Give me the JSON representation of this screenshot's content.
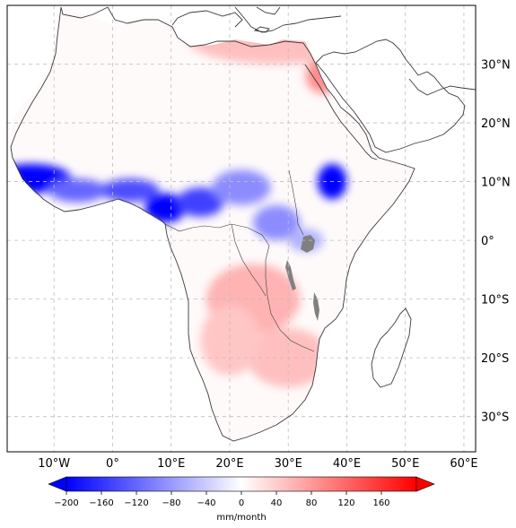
{
  "map": {
    "lon_ticks": [
      "10°W",
      "0°",
      "10°E",
      "20°E",
      "30°E",
      "40°E",
      "50°E",
      "60°E"
    ],
    "lat_ticks": [
      "30°N",
      "20°N",
      "10°N",
      "0°",
      "10°S",
      "20°S",
      "30°S"
    ],
    "lon_range": [
      -18,
      62
    ],
    "lat_range": [
      -36,
      40
    ],
    "gridlines": true,
    "colormap": "bwr",
    "anomaly_hotspots": [
      {
        "lon": -14,
        "lat": 10.5,
        "value": -200,
        "sx": 7,
        "sy": 2.5
      },
      {
        "lon": -6,
        "lat": 8.5,
        "value": -120,
        "sx": 5,
        "sy": 2
      },
      {
        "lon": 3,
        "lat": 8.5,
        "value": -140,
        "sx": 5,
        "sy": 2
      },
      {
        "lon": 9,
        "lat": 5.5,
        "value": -200,
        "sx": 3.5,
        "sy": 2.5
      },
      {
        "lon": 15,
        "lat": 6.5,
        "value": -150,
        "sx": 4,
        "sy": 2.5
      },
      {
        "lon": 22,
        "lat": 9,
        "value": -90,
        "sx": 5,
        "sy": 3
      },
      {
        "lon": 28,
        "lat": 3,
        "value": -90,
        "sx": 4,
        "sy": 3
      },
      {
        "lon": 37.5,
        "lat": 10,
        "value": -220,
        "sx": 2.5,
        "sy": 3
      },
      {
        "lon": 33,
        "lat": 0,
        "value": -60,
        "sx": 3,
        "sy": 2
      },
      {
        "lon": 24,
        "lat": -10,
        "value": 60,
        "sx": 8,
        "sy": 6
      },
      {
        "lon": 30,
        "lat": -20,
        "value": 50,
        "sx": 7,
        "sy": 5
      },
      {
        "lon": 20,
        "lat": -17,
        "value": 45,
        "sx": 5,
        "sy": 6
      },
      {
        "lon": 36,
        "lat": 28,
        "value": 90,
        "sx": 3,
        "sy": 3
      },
      {
        "lon": 28,
        "lat": 34,
        "value": 50,
        "sx": 15,
        "sy": 4
      },
      {
        "lon": 50,
        "lat": 24,
        "value": 40,
        "sx": 6,
        "sy": 4
      },
      {
        "lon": 47,
        "lat": -20,
        "value": 50,
        "sx": 2,
        "sy": 3
      }
    ]
  },
  "colorbar": {
    "label": "mm/month",
    "ticks": [
      "−200",
      "−160",
      "−120",
      "−80",
      "−40",
      "0",
      "40",
      "80",
      "120",
      "160"
    ],
    "tick_values": [
      -200,
      -160,
      -120,
      -80,
      -40,
      0,
      40,
      80,
      120,
      160
    ],
    "range": [
      -200,
      200
    ],
    "extend": "both",
    "colors": {
      "min": "#0000ff",
      "mid": "#ffffff",
      "max": "#ff0000"
    }
  },
  "colors": {
    "grid": "#bdbdbd",
    "coast": "#3a3a3a",
    "lakes": "#808080"
  }
}
